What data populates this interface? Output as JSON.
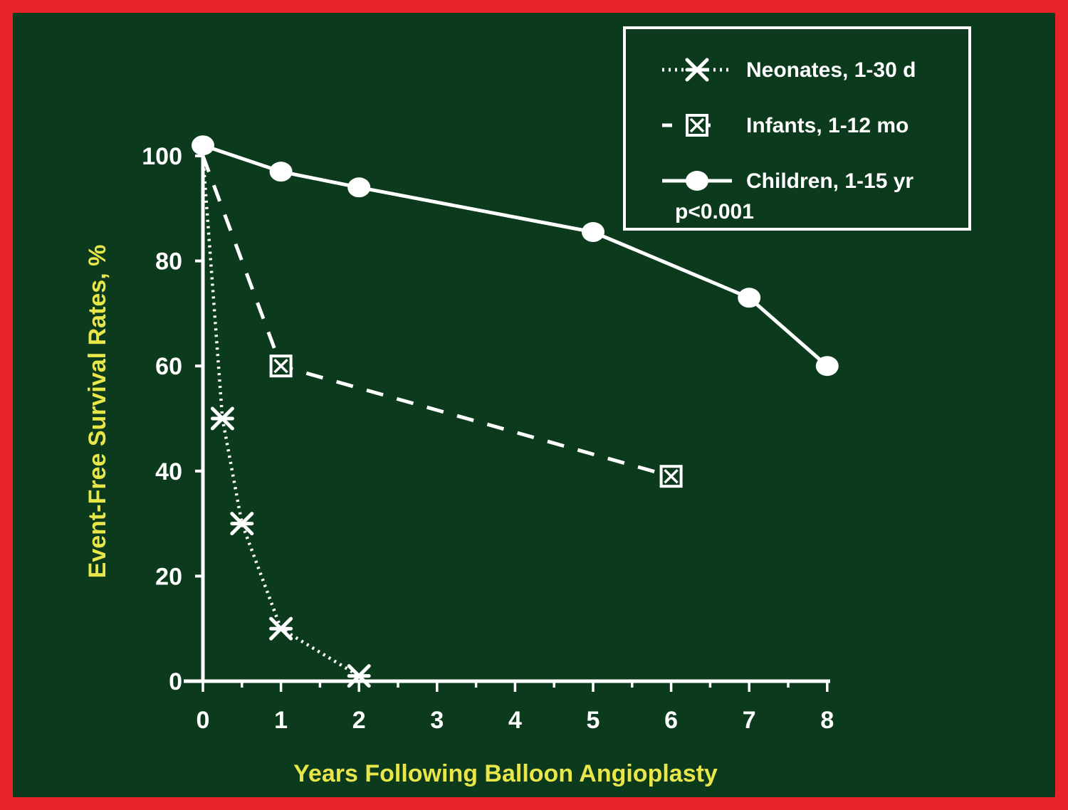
{
  "chart_data": {
    "type": "line",
    "xlabel": "Years Following Balloon Angioplasty",
    "ylabel": "Event-Free Survival Rates, %",
    "xlim": [
      0,
      8
    ],
    "ylim": [
      0,
      100
    ],
    "x_ticks": [
      0,
      1,
      2,
      3,
      4,
      5,
      6,
      7,
      8
    ],
    "y_ticks": [
      0,
      20,
      40,
      60,
      80,
      100
    ],
    "grid": false,
    "legend_position": "top-right",
    "annotation": "p<0.001",
    "series": [
      {
        "name": "Neonates, 1-30 d",
        "line_style": "dotted",
        "marker": "asterisk",
        "x": [
          0,
          0.25,
          0.5,
          1,
          2
        ],
        "y": [
          100,
          50,
          30,
          10,
          1
        ]
      },
      {
        "name": "Infants, 1-12 mo",
        "line_style": "dashed",
        "marker": "boxed-x",
        "x": [
          0,
          1,
          6
        ],
        "y": [
          100,
          60,
          39
        ]
      },
      {
        "name": "Children, 1-15 yr",
        "line_style": "solid",
        "marker": "circle",
        "x": [
          0,
          1,
          2,
          5,
          7,
          8
        ],
        "y": [
          102,
          97,
          94,
          85.5,
          73,
          60
        ]
      }
    ]
  },
  "colors": {
    "frame": "#e8232a",
    "background": "#0c3a1c",
    "lines": "#ffffff",
    "axis_title": "#e9e64a"
  }
}
